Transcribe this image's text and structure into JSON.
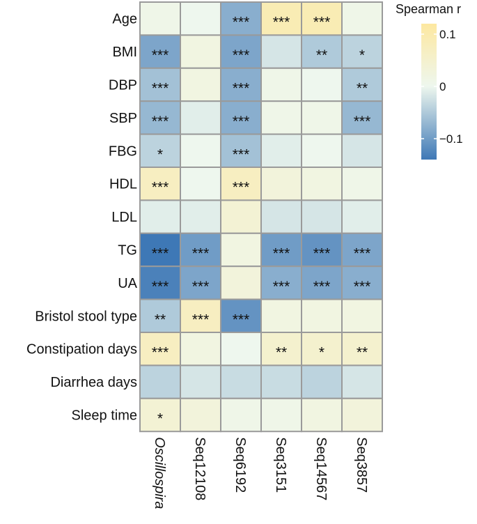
{
  "chart_data": {
    "type": "heatmap",
    "legend_title": "Spearman r",
    "legend_ticks": [
      {
        "value": 0.1,
        "label": "0.1"
      },
      {
        "value": 0,
        "label": "0"
      },
      {
        "value": -0.1,
        "label": "−0.1"
      }
    ],
    "color_range": [
      -0.14,
      0.12
    ],
    "colors": {
      "low": "#3e78b6",
      "mid": "#eef7ee",
      "high": "#fde8a0"
    },
    "rows": [
      "Age",
      "BMI",
      "DBP",
      "SBP",
      "FBG",
      "HDL",
      "LDL",
      "TG",
      "UA",
      "Bristol stool type",
      "Constipation days",
      "Diarrhea days",
      "Sleep time"
    ],
    "columns": [
      {
        "label": "Oscillospira",
        "italic": true
      },
      {
        "label": "Seq12108",
        "italic": false
      },
      {
        "label": "Seq6192",
        "italic": false
      },
      {
        "label": "Seq3151",
        "italic": false
      },
      {
        "label": "Seq14567",
        "italic": false
      },
      {
        "label": "Seq3857",
        "italic": false
      }
    ],
    "values": [
      [
        0.01,
        0.0,
        -0.08,
        0.09,
        0.09,
        0.01
      ],
      [
        -0.09,
        0.02,
        -0.09,
        -0.02,
        -0.05,
        -0.04
      ],
      [
        -0.06,
        0.02,
        -0.08,
        0.01,
        0.0,
        -0.05
      ],
      [
        -0.07,
        -0.01,
        -0.08,
        0.01,
        0.01,
        -0.07
      ],
      [
        -0.04,
        0.0,
        -0.06,
        -0.01,
        0.0,
        -0.02
      ],
      [
        0.07,
        0.0,
        0.07,
        0.03,
        0.02,
        0.01
      ],
      [
        -0.01,
        -0.01,
        0.04,
        -0.02,
        -0.02,
        -0.01
      ],
      [
        -0.14,
        -0.1,
        0.02,
        -0.1,
        -0.11,
        -0.09
      ],
      [
        -0.13,
        -0.09,
        0.03,
        -0.08,
        -0.09,
        -0.08
      ],
      [
        -0.05,
        0.07,
        -0.11,
        0.02,
        0.02,
        0.02
      ],
      [
        0.07,
        0.02,
        0.0,
        0.05,
        0.05,
        0.05
      ],
      [
        -0.04,
        -0.02,
        -0.03,
        -0.03,
        -0.04,
        -0.02
      ],
      [
        0.04,
        0.03,
        0.01,
        0.01,
        0.02,
        0.03
      ]
    ],
    "significance": [
      [
        "",
        "",
        "***",
        "***",
        "***",
        ""
      ],
      [
        "***",
        "",
        "***",
        "",
        "**",
        "*"
      ],
      [
        "***",
        "",
        "***",
        "",
        "",
        "**"
      ],
      [
        "***",
        "",
        "***",
        "",
        "",
        "***"
      ],
      [
        "*",
        "",
        "***",
        "",
        "",
        ""
      ],
      [
        "***",
        "",
        "***",
        "",
        "",
        ""
      ],
      [
        "",
        "",
        "",
        "",
        "",
        ""
      ],
      [
        "***",
        "***",
        "",
        "***",
        "***",
        "***"
      ],
      [
        "***",
        "***",
        "",
        "***",
        "***",
        "***"
      ],
      [
        "**",
        "***",
        "***",
        "",
        "",
        ""
      ],
      [
        "***",
        "",
        "",
        "**",
        "*",
        "**"
      ],
      [
        "",
        "",
        "",
        "",
        "",
        ""
      ],
      [
        "*",
        "",
        "",
        "",
        "",
        ""
      ]
    ]
  }
}
